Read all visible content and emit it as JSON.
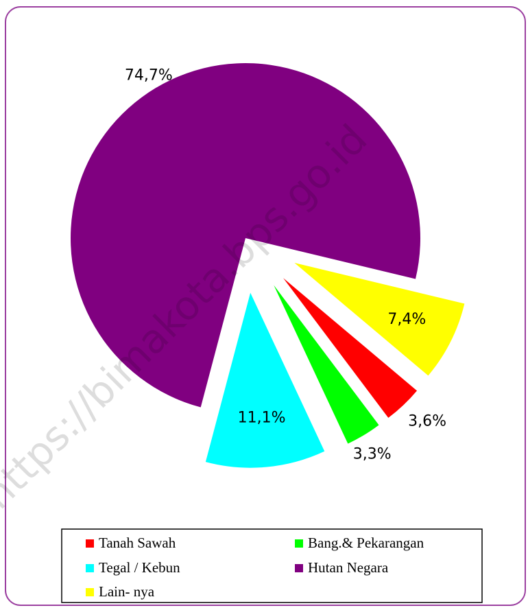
{
  "chart_data": {
    "type": "pie",
    "categories": [
      "Tanah Sawah",
      "Bang.& Pekarangan",
      "Tegal / Kebun",
      "Hutan Negara",
      "Lain- nya"
    ],
    "values": [
      3.6,
      3.3,
      11.1,
      74.7,
      7.4
    ],
    "value_labels": [
      "3,6%",
      "3,3%",
      "11,1%",
      "74,7%",
      "7,4%"
    ],
    "colors": [
      "#ff0000",
      "#00ff00",
      "#00ffff",
      "#800080",
      "#ffff00"
    ],
    "legend": "bottom",
    "watermark": "https://bimakota.bps.go.id"
  }
}
